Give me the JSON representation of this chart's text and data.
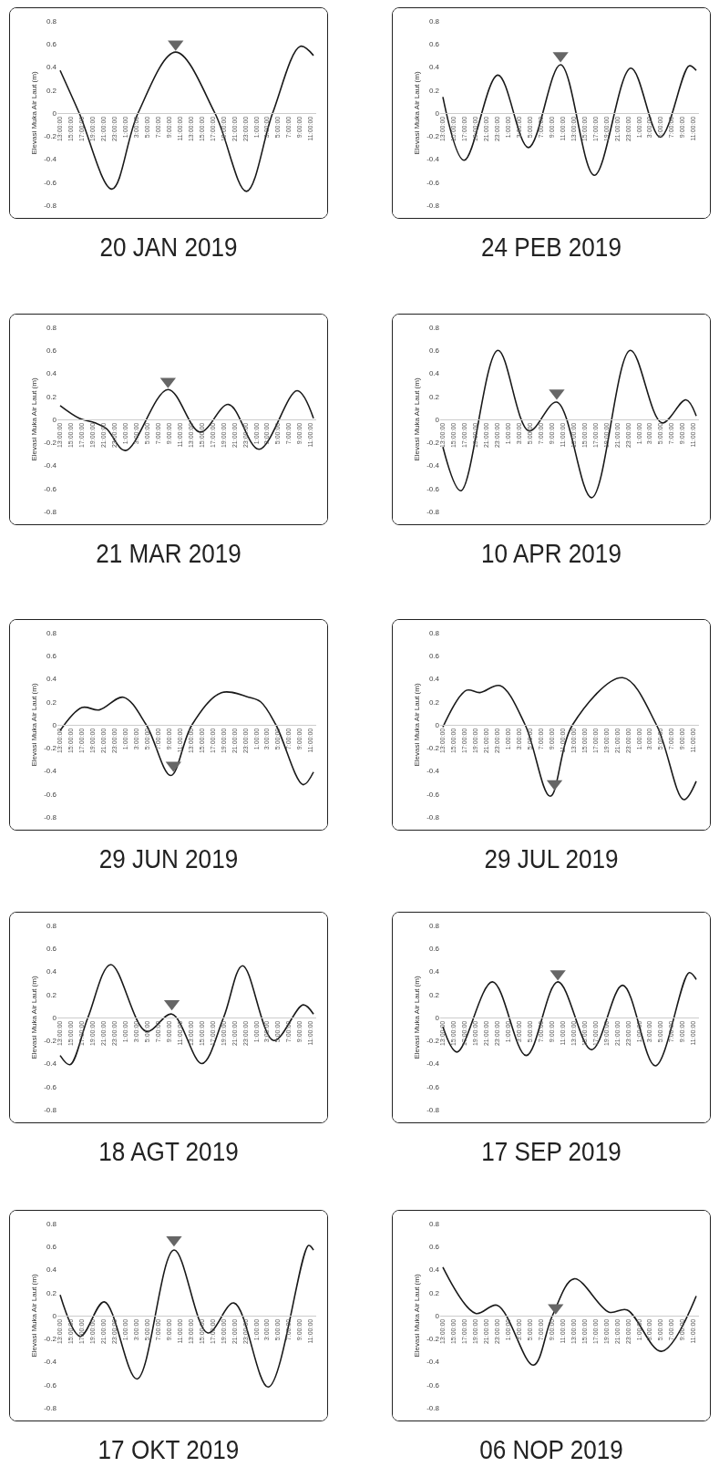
{
  "chart_data": [
    {
      "type": "line",
      "title": "20 JAN 2019",
      "ylabel": "Elevasi Muka Air Laut (m)",
      "xlim": [
        "2019-01-19T12:30",
        "2019-01-21T12:00"
      ],
      "ylim": [
        -0.8,
        0.8
      ],
      "yticks": [
        -0.8,
        -0.6,
        -0.4,
        -0.2,
        0,
        0.2,
        0.4,
        0.6,
        0.8
      ],
      "xticks": [
        {
          "value": "2019-01-19T13:00",
          "label": "13:00:00"
        },
        {
          "value": "2019-01-19T15:00",
          "label": "15:00:00"
        },
        {
          "value": "2019-01-19T17:00",
          "label": "17:00:00"
        },
        {
          "value": "2019-01-19T19:00",
          "label": "19:00:00"
        },
        {
          "value": "2019-01-19T21:00",
          "label": "21:00:00"
        },
        {
          "value": "2019-01-19T23:00",
          "label": "23:00:00"
        },
        {
          "value": "2019-01-20T01:00",
          "label": "1:00:00"
        },
        {
          "value": "2019-01-20T03:00",
          "label": "3:00:00"
        },
        {
          "value": "2019-01-20T05:00",
          "label": "5:00:00"
        },
        {
          "value": "2019-01-20T07:00",
          "label": "7:00:00"
        },
        {
          "value": "2019-01-20T09:00",
          "label": "9:00:00"
        },
        {
          "value": "2019-01-20T11:00",
          "label": "11:00:00"
        },
        {
          "value": "2019-01-20T13:00",
          "label": "13:00:00"
        },
        {
          "value": "2019-01-20T15:00",
          "label": "15:00:00"
        },
        {
          "value": "2019-01-20T17:00",
          "label": "17:00:00"
        },
        {
          "value": "2019-01-20T19:00",
          "label": "19:00:00"
        },
        {
          "value": "2019-01-20T21:00",
          "label": "21:00:00"
        },
        {
          "value": "2019-01-20T23:00",
          "label": "23:00:00"
        },
        {
          "value": "2019-01-21T01:00",
          "label": "1:00:00"
        },
        {
          "value": "2019-01-21T03:00",
          "label": "3:00:00"
        },
        {
          "value": "2019-01-21T05:00",
          "label": "5:00:00"
        },
        {
          "value": "2019-01-21T07:00",
          "label": "7:00:00"
        },
        {
          "value": "2019-01-21T09:00",
          "label": "9:00:00"
        },
        {
          "value": "2019-01-21T11:00",
          "label": "11:00:00"
        }
      ],
      "series": [
        {
          "type": "line",
          "color": "#1a1a1a",
          "x": [
            "2019-01-19T13:00",
            "2019-01-19T16:30",
            "2019-01-19T22:30",
            "2019-01-20T03:18",
            "2019-01-20T10:12",
            "2019-01-20T17:24",
            "2019-01-20T23:12",
            "2019-01-21T04:00",
            "2019-01-21T09:06",
            "2019-01-21T11:30"
          ],
          "values": [
            0.37,
            0,
            -0.66,
            0,
            0.53,
            0,
            -0.68,
            0,
            0.58,
            0.5
          ]
        },
        {
          "type": "scatter",
          "marker": "triangle",
          "color": "#666666",
          "x": [
            "2019-01-20T10:12"
          ],
          "values": [
            0.6
          ]
        }
      ]
    },
    {
      "type": "line",
      "title": "24 PEB 2019",
      "ylabel": "Elevasi Muka Air Laut (m)",
      "xlim": [
        "2019-02-23T12:30",
        "2019-02-25T12:00"
      ],
      "ylim": [
        -0.8,
        0.8
      ],
      "yticks": [
        -0.8,
        -0.6,
        -0.4,
        -0.2,
        0,
        0.2,
        0.4,
        0.6,
        0.8
      ],
      "xticks": [
        {
          "value": "2019-02-23T13:00",
          "label": "13:00:00"
        },
        {
          "value": "2019-02-23T15:00",
          "label": "15:00:00"
        },
        {
          "value": "2019-02-23T17:00",
          "label": "17:00:00"
        },
        {
          "value": "2019-02-23T19:00",
          "label": "19:00:00"
        },
        {
          "value": "2019-02-23T21:00",
          "label": "21:00:00"
        },
        {
          "value": "2019-02-23T23:00",
          "label": "23:00:00"
        },
        {
          "value": "2019-02-24T01:00",
          "label": "1:00:00"
        },
        {
          "value": "2019-02-24T03:00",
          "label": "3:00:00"
        },
        {
          "value": "2019-02-24T05:00",
          "label": "5:00:00"
        },
        {
          "value": "2019-02-24T07:00",
          "label": "7:00:00"
        },
        {
          "value": "2019-02-24T09:00",
          "label": "9:00:00"
        },
        {
          "value": "2019-02-24T11:00",
          "label": "11:00:00"
        },
        {
          "value": "2019-02-24T13:00",
          "label": "13:00:00"
        },
        {
          "value": "2019-02-24T15:00",
          "label": "15:00:00"
        },
        {
          "value": "2019-02-24T17:00",
          "label": "17:00:00"
        },
        {
          "value": "2019-02-24T19:00",
          "label": "19:00:00"
        },
        {
          "value": "2019-02-24T21:00",
          "label": "21:00:00"
        },
        {
          "value": "2019-02-24T23:00",
          "label": "23:00:00"
        },
        {
          "value": "2019-02-25T01:00",
          "label": "1:00:00"
        },
        {
          "value": "2019-02-25T03:00",
          "label": "3:00:00"
        },
        {
          "value": "2019-02-25T05:00",
          "label": "5:00:00"
        },
        {
          "value": "2019-02-25T07:00",
          "label": "7:00:00"
        },
        {
          "value": "2019-02-25T09:00",
          "label": "9:00:00"
        },
        {
          "value": "2019-02-25T11:00",
          "label": "11:00:00"
        }
      ],
      "series": [
        {
          "type": "line",
          "color": "#1a1a1a",
          "x": [
            "2019-02-23T13:00",
            "2019-02-23T16:54",
            "2019-02-23T23:06",
            "2019-02-24T04:42",
            "2019-02-24T10:36",
            "2019-02-24T16:48",
            "2019-02-24T23:30",
            "2019-02-25T04:54",
            "2019-02-25T10:12",
            "2019-02-25T11:30"
          ],
          "values": [
            0.14,
            -0.41,
            0.33,
            -0.3,
            0.42,
            -0.54,
            0.39,
            -0.21,
            0.41,
            0.37
          ]
        },
        {
          "type": "scatter",
          "marker": "triangle",
          "color": "#666666",
          "x": [
            "2019-02-24T10:36"
          ],
          "values": [
            0.5
          ]
        }
      ]
    },
    {
      "type": "line",
      "title": "21 MAR 2019",
      "ylabel": "Elevasi Muka Air Laut (m)",
      "xlim": [
        "2019-03-20T12:30",
        "2019-03-22T12:00"
      ],
      "ylim": [
        -0.8,
        0.8
      ],
      "yticks": [
        -0.8,
        -0.6,
        -0.4,
        -0.2,
        0,
        0.2,
        0.4,
        0.6,
        0.8
      ],
      "xticks": [
        {
          "value": "2019-03-20T13:00",
          "label": "13:00:00"
        },
        {
          "value": "2019-03-20T15:00",
          "label": "15:00:00"
        },
        {
          "value": "2019-03-20T17:00",
          "label": "17:00:00"
        },
        {
          "value": "2019-03-20T19:00",
          "label": "19:00:00"
        },
        {
          "value": "2019-03-20T21:00",
          "label": "21:00:00"
        },
        {
          "value": "2019-03-20T23:00",
          "label": "23:00:00"
        },
        {
          "value": "2019-03-21T01:00",
          "label": "1:00:00"
        },
        {
          "value": "2019-03-21T03:00",
          "label": "3:00:00"
        },
        {
          "value": "2019-03-21T05:00",
          "label": "5:00:00"
        },
        {
          "value": "2019-03-21T07:00",
          "label": "7:00:00"
        },
        {
          "value": "2019-03-21T09:00",
          "label": "9:00:00"
        },
        {
          "value": "2019-03-21T11:00",
          "label": "11:00:00"
        },
        {
          "value": "2019-03-21T13:00",
          "label": "13:00:00"
        },
        {
          "value": "2019-03-21T15:00",
          "label": "15:00:00"
        },
        {
          "value": "2019-03-21T17:00",
          "label": "17:00:00"
        },
        {
          "value": "2019-03-21T19:00",
          "label": "19:00:00"
        },
        {
          "value": "2019-03-21T21:00",
          "label": "21:00:00"
        },
        {
          "value": "2019-03-21T23:00",
          "label": "23:00:00"
        },
        {
          "value": "2019-03-22T01:00",
          "label": "1:00:00"
        },
        {
          "value": "2019-03-22T03:00",
          "label": "3:00:00"
        },
        {
          "value": "2019-03-22T05:00",
          "label": "5:00:00"
        },
        {
          "value": "2019-03-22T07:00",
          "label": "7:00:00"
        },
        {
          "value": "2019-03-22T09:00",
          "label": "9:00:00"
        },
        {
          "value": "2019-03-22T11:00",
          "label": "11:00:00"
        }
      ],
      "series": [
        {
          "type": "line",
          "color": "#1a1a1a",
          "x": [
            "2019-03-20T13:00",
            "2019-03-20T16:30",
            "2019-03-20T19:24",
            "2019-03-20T21:30",
            "2019-03-21T01:00",
            "2019-03-21T08:48",
            "2019-03-21T14:42",
            "2019-03-21T19:54",
            "2019-03-22T01:30",
            "2019-03-22T08:30",
            "2019-03-22T11:30"
          ],
          "values": [
            0.12,
            0.01,
            -0.03,
            -0.08,
            -0.27,
            0.26,
            -0.11,
            0.13,
            -0.26,
            0.25,
            0.01
          ]
        },
        {
          "type": "scatter",
          "marker": "triangle",
          "color": "#666666",
          "x": [
            "2019-03-21T08:48"
          ],
          "values": [
            0.33
          ]
        }
      ]
    },
    {
      "type": "line",
      "title": "10 APR 2019",
      "ylabel": "Elevasi Muka Air Laut (m)",
      "xlim": [
        "2019-04-09T12:30",
        "2019-04-11T12:00"
      ],
      "ylim": [
        -0.8,
        0.8
      ],
      "yticks": [
        -0.8,
        -0.6,
        -0.4,
        -0.2,
        0,
        0.2,
        0.4,
        0.6,
        0.8
      ],
      "xticks": [
        {
          "value": "2019-04-09T13:00",
          "label": "13:00:00"
        },
        {
          "value": "2019-04-09T15:00",
          "label": "15:00:00"
        },
        {
          "value": "2019-04-09T17:00",
          "label": "17:00:00"
        },
        {
          "value": "2019-04-09T19:00",
          "label": "19:00:00"
        },
        {
          "value": "2019-04-09T21:00",
          "label": "21:00:00"
        },
        {
          "value": "2019-04-09T23:00",
          "label": "23:00:00"
        },
        {
          "value": "2019-04-10T01:00",
          "label": "1:00:00"
        },
        {
          "value": "2019-04-10T03:00",
          "label": "3:00:00"
        },
        {
          "value": "2019-04-10T05:00",
          "label": "5:00:00"
        },
        {
          "value": "2019-04-10T07:00",
          "label": "7:00:00"
        },
        {
          "value": "2019-04-10T09:00",
          "label": "9:00:00"
        },
        {
          "value": "2019-04-10T11:00",
          "label": "11:00:00"
        },
        {
          "value": "2019-04-10T13:00",
          "label": "13:00:00"
        },
        {
          "value": "2019-04-10T15:00",
          "label": "15:00:00"
        },
        {
          "value": "2019-04-10T17:00",
          "label": "17:00:00"
        },
        {
          "value": "2019-04-10T19:00",
          "label": "19:00:00"
        },
        {
          "value": "2019-04-10T21:00",
          "label": "21:00:00"
        },
        {
          "value": "2019-04-10T23:00",
          "label": "23:00:00"
        },
        {
          "value": "2019-04-11T01:00",
          "label": "1:00:00"
        },
        {
          "value": "2019-04-11T03:00",
          "label": "3:00:00"
        },
        {
          "value": "2019-04-11T05:00",
          "label": "5:00:00"
        },
        {
          "value": "2019-04-11T07:00",
          "label": "7:00:00"
        },
        {
          "value": "2019-04-11T09:00",
          "label": "9:00:00"
        },
        {
          "value": "2019-04-11T11:00",
          "label": "11:00:00"
        }
      ],
      "series": [
        {
          "type": "line",
          "color": "#1a1a1a",
          "x": [
            "2019-04-09T13:00",
            "2019-04-09T16:18",
            "2019-04-09T23:06",
            "2019-04-10T04:48",
            "2019-04-10T09:54",
            "2019-04-10T16:18",
            "2019-04-10T23:24",
            "2019-04-11T05:12",
            "2019-04-11T09:36",
            "2019-04-11T11:30"
          ],
          "values": [
            -0.24,
            -0.62,
            0.6,
            -0.1,
            0.15,
            -0.68,
            0.6,
            -0.03,
            0.17,
            0.03
          ]
        },
        {
          "type": "scatter",
          "marker": "triangle",
          "color": "#666666",
          "x": [
            "2019-04-10T09:54"
          ],
          "values": [
            0.23
          ]
        }
      ]
    },
    {
      "type": "line",
      "title": "29 JUN 2019",
      "ylabel": "Elevasi Muka Air Laut (m)",
      "xlim": [
        "2019-06-28T12:30",
        "2019-06-30T12:00"
      ],
      "ylim": [
        -0.8,
        0.8
      ],
      "yticks": [
        -0.8,
        -0.6,
        -0.4,
        -0.2,
        0,
        0.2,
        0.4,
        0.6,
        0.8
      ],
      "xticks": [
        {
          "value": "2019-06-28T13:00",
          "label": "13:00:00"
        },
        {
          "value": "2019-06-28T15:00",
          "label": "15:00:00"
        },
        {
          "value": "2019-06-28T17:00",
          "label": "17:00:00"
        },
        {
          "value": "2019-06-28T19:00",
          "label": "19:00:00"
        },
        {
          "value": "2019-06-28T21:00",
          "label": "21:00:00"
        },
        {
          "value": "2019-06-28T23:00",
          "label": "23:00:00"
        },
        {
          "value": "2019-06-29T01:00",
          "label": "1:00:00"
        },
        {
          "value": "2019-06-29T03:00",
          "label": "3:00:00"
        },
        {
          "value": "2019-06-29T05:00",
          "label": "5:00:00"
        },
        {
          "value": "2019-06-29T07:00",
          "label": "7:00:00"
        },
        {
          "value": "2019-06-29T09:00",
          "label": "9:00:00"
        },
        {
          "value": "2019-06-29T11:00",
          "label": "11:00:00"
        },
        {
          "value": "2019-06-29T13:00",
          "label": "13:00:00"
        },
        {
          "value": "2019-06-29T15:00",
          "label": "15:00:00"
        },
        {
          "value": "2019-06-29T17:00",
          "label": "17:00:00"
        },
        {
          "value": "2019-06-29T19:00",
          "label": "19:00:00"
        },
        {
          "value": "2019-06-29T21:00",
          "label": "21:00:00"
        },
        {
          "value": "2019-06-29T23:00",
          "label": "23:00:00"
        },
        {
          "value": "2019-06-30T01:00",
          "label": "1:00:00"
        },
        {
          "value": "2019-06-30T03:00",
          "label": "3:00:00"
        },
        {
          "value": "2019-06-30T05:00",
          "label": "5:00:00"
        },
        {
          "value": "2019-06-30T07:00",
          "label": "7:00:00"
        },
        {
          "value": "2019-06-30T09:00",
          "label": "9:00:00"
        },
        {
          "value": "2019-06-30T11:00",
          "label": "11:00:00"
        }
      ],
      "series": [
        {
          "type": "line",
          "color": "#1a1a1a",
          "x": [
            "2019-06-28T13:00",
            "2019-06-28T17:00",
            "2019-06-28T20:12",
            "2019-06-29T00:36",
            "2019-06-29T04:48",
            "2019-06-29T09:18",
            "2019-06-29T13:12",
            "2019-06-29T18:36",
            "2019-06-29T23:36",
            "2019-06-30T01:48",
            "2019-06-30T04:36",
            "2019-06-30T09:36",
            "2019-06-30T11:30"
          ],
          "values": [
            -0.05,
            0.15,
            0.13,
            0.24,
            0,
            -0.44,
            0,
            0.28,
            0.24,
            0.2,
            0,
            -0.52,
            -0.41
          ]
        },
        {
          "type": "scatter",
          "marker": "triangle",
          "color": "#666666",
          "x": [
            "2019-06-29T09:48"
          ],
          "values": [
            -0.35
          ]
        }
      ]
    },
    {
      "type": "line",
      "title": "29 JUL 2019",
      "ylabel": "Elevasi Muka Air Laut (m)",
      "xlim": [
        "2019-07-28T12:30",
        "2019-07-30T12:00"
      ],
      "ylim": [
        -0.8,
        0.8
      ],
      "yticks": [
        -0.8,
        -0.6,
        -0.4,
        -0.2,
        0,
        0.2,
        0.4,
        0.6,
        0.8
      ],
      "xticks": [
        {
          "value": "2019-07-28T13:00",
          "label": "13:00:00"
        },
        {
          "value": "2019-07-28T15:00",
          "label": "15:00:00"
        },
        {
          "value": "2019-07-28T17:00",
          "label": "17:00:00"
        },
        {
          "value": "2019-07-28T19:00",
          "label": "19:00:00"
        },
        {
          "value": "2019-07-28T21:00",
          "label": "21:00:00"
        },
        {
          "value": "2019-07-28T23:00",
          "label": "23:00:00"
        },
        {
          "value": "2019-07-29T01:00",
          "label": "1:00:00"
        },
        {
          "value": "2019-07-29T03:00",
          "label": "3:00:00"
        },
        {
          "value": "2019-07-29T05:00",
          "label": "5:00:00"
        },
        {
          "value": "2019-07-29T07:00",
          "label": "7:00:00"
        },
        {
          "value": "2019-07-29T09:00",
          "label": "9:00:00"
        },
        {
          "value": "2019-07-29T11:00",
          "label": "11:00:00"
        },
        {
          "value": "2019-07-29T13:00",
          "label": "13:00:00"
        },
        {
          "value": "2019-07-29T15:00",
          "label": "15:00:00"
        },
        {
          "value": "2019-07-29T17:00",
          "label": "17:00:00"
        },
        {
          "value": "2019-07-29T19:00",
          "label": "19:00:00"
        },
        {
          "value": "2019-07-29T21:00",
          "label": "21:00:00"
        },
        {
          "value": "2019-07-29T23:00",
          "label": "23:00:00"
        },
        {
          "value": "2019-07-30T01:00",
          "label": "1:00:00"
        },
        {
          "value": "2019-07-30T03:00",
          "label": "3:00:00"
        },
        {
          "value": "2019-07-30T05:00",
          "label": "5:00:00"
        },
        {
          "value": "2019-07-30T07:00",
          "label": "7:00:00"
        },
        {
          "value": "2019-07-30T09:00",
          "label": "9:00:00"
        },
        {
          "value": "2019-07-30T11:00",
          "label": "11:00:00"
        }
      ],
      "series": [
        {
          "type": "line",
          "color": "#1a1a1a",
          "x": [
            "2019-07-28T13:00",
            "2019-07-28T17:18",
            "2019-07-28T19:48",
            "2019-07-28T23:30",
            "2019-07-29T04:06",
            "2019-07-29T08:42",
            "2019-07-29T12:48",
            "2019-07-29T22:00",
            "2019-07-30T04:12",
            "2019-07-30T09:12",
            "2019-07-30T11:30"
          ],
          "values": [
            -0.02,
            0.3,
            0.28,
            0.34,
            0,
            -0.62,
            0,
            0.41,
            0,
            -0.65,
            -0.49
          ]
        },
        {
          "type": "scatter",
          "marker": "triangle",
          "color": "#666666",
          "x": [
            "2019-07-29T09:30"
          ],
          "values": [
            -0.51
          ]
        }
      ]
    },
    {
      "type": "line",
      "title": "18 AGT 2019",
      "ylabel": "Elevasi Muka Air Laut (m)",
      "xlim": [
        "2019-08-17T12:30",
        "2019-08-19T12:00"
      ],
      "ylim": [
        -0.8,
        0.8
      ],
      "yticks": [
        -0.8,
        -0.6,
        -0.4,
        -0.2,
        0,
        0.2,
        0.4,
        0.6,
        0.8
      ],
      "xticks": [
        {
          "value": "2019-08-17T13:00",
          "label": "13:00:00"
        },
        {
          "value": "2019-08-17T15:00",
          "label": "15:00:00"
        },
        {
          "value": "2019-08-17T17:00",
          "label": "17:00:00"
        },
        {
          "value": "2019-08-17T19:00",
          "label": "19:00:00"
        },
        {
          "value": "2019-08-17T21:00",
          "label": "21:00:00"
        },
        {
          "value": "2019-08-17T23:00",
          "label": "23:00:00"
        },
        {
          "value": "2019-08-18T01:00",
          "label": "1:00:00"
        },
        {
          "value": "2019-08-18T03:00",
          "label": "3:00:00"
        },
        {
          "value": "2019-08-18T05:00",
          "label": "5:00:00"
        },
        {
          "value": "2019-08-18T07:00",
          "label": "7:00:00"
        },
        {
          "value": "2019-08-18T09:00",
          "label": "9:00:00"
        },
        {
          "value": "2019-08-18T11:00",
          "label": "11:00:00"
        },
        {
          "value": "2019-08-18T13:00",
          "label": "13:00:00"
        },
        {
          "value": "2019-08-18T15:00",
          "label": "15:00:00"
        },
        {
          "value": "2019-08-18T17:00",
          "label": "17:00:00"
        },
        {
          "value": "2019-08-18T19:00",
          "label": "19:00:00"
        },
        {
          "value": "2019-08-18T21:00",
          "label": "21:00:00"
        },
        {
          "value": "2019-08-18T23:00",
          "label": "23:00:00"
        },
        {
          "value": "2019-08-19T01:00",
          "label": "1:00:00"
        },
        {
          "value": "2019-08-19T03:00",
          "label": "3:00:00"
        },
        {
          "value": "2019-08-19T05:00",
          "label": "5:00:00"
        },
        {
          "value": "2019-08-19T07:00",
          "label": "7:00:00"
        },
        {
          "value": "2019-08-19T09:00",
          "label": "9:00:00"
        },
        {
          "value": "2019-08-19T11:00",
          "label": "11:00:00"
        }
      ],
      "series": [
        {
          "type": "line",
          "color": "#1a1a1a",
          "x": [
            "2019-08-17T13:00",
            "2019-08-17T14:48",
            "2019-08-17T18:06",
            "2019-08-17T22:18",
            "2019-08-18T04:48",
            "2019-08-18T09:30",
            "2019-08-18T15:00",
            "2019-08-18T19:00",
            "2019-08-18T22:30",
            "2019-08-19T04:12",
            "2019-08-19T09:36",
            "2019-08-19T11:30"
          ],
          "values": [
            -0.33,
            -0.41,
            0,
            0.46,
            -0.12,
            0.03,
            -0.4,
            0,
            0.45,
            -0.2,
            0.11,
            0.03
          ]
        },
        {
          "type": "scatter",
          "marker": "triangle",
          "color": "#666666",
          "x": [
            "2019-08-18T09:30"
          ],
          "values": [
            0.12
          ]
        }
      ]
    },
    {
      "type": "line",
      "title": "17 SEP 2019",
      "ylabel": "Elevasi Muka Air Laut (m)",
      "xlim": [
        "2019-09-16T12:30",
        "2019-09-18T12:00"
      ],
      "ylim": [
        -0.8,
        0.8
      ],
      "yticks": [
        -0.8,
        -0.6,
        -0.4,
        -0.2,
        0,
        0.2,
        0.4,
        0.6,
        0.8
      ],
      "xticks": [
        {
          "value": "2019-09-16T13:00",
          "label": "13:00:00"
        },
        {
          "value": "2019-09-16T15:00",
          "label": "15:00:00"
        },
        {
          "value": "2019-09-16T17:00",
          "label": "17:00:00"
        },
        {
          "value": "2019-09-16T19:00",
          "label": "19:00:00"
        },
        {
          "value": "2019-09-16T21:00",
          "label": "21:00:00"
        },
        {
          "value": "2019-09-16T23:00",
          "label": "23:00:00"
        },
        {
          "value": "2019-09-17T01:00",
          "label": "1:00:00"
        },
        {
          "value": "2019-09-17T03:00",
          "label": "3:00:00"
        },
        {
          "value": "2019-09-17T05:00",
          "label": "5:00:00"
        },
        {
          "value": "2019-09-17T07:00",
          "label": "7:00:00"
        },
        {
          "value": "2019-09-17T09:00",
          "label": "9:00:00"
        },
        {
          "value": "2019-09-17T11:00",
          "label": "11:00:00"
        },
        {
          "value": "2019-09-17T13:00",
          "label": "13:00:00"
        },
        {
          "value": "2019-09-17T15:00",
          "label": "15:00:00"
        },
        {
          "value": "2019-09-17T17:00",
          "label": "17:00:00"
        },
        {
          "value": "2019-09-17T19:00",
          "label": "19:00:00"
        },
        {
          "value": "2019-09-17T21:00",
          "label": "21:00:00"
        },
        {
          "value": "2019-09-17T23:00",
          "label": "23:00:00"
        },
        {
          "value": "2019-09-18T01:00",
          "label": "1:00:00"
        },
        {
          "value": "2019-09-18T03:00",
          "label": "3:00:00"
        },
        {
          "value": "2019-09-18T05:00",
          "label": "5:00:00"
        },
        {
          "value": "2019-09-18T07:00",
          "label": "7:00:00"
        },
        {
          "value": "2019-09-18T09:00",
          "label": "9:00:00"
        },
        {
          "value": "2019-09-18T11:00",
          "label": "11:00:00"
        }
      ],
      "series": [
        {
          "type": "line",
          "color": "#1a1a1a",
          "x": [
            "2019-09-16T13:00",
            "2019-09-16T15:36",
            "2019-09-16T22:06",
            "2019-09-17T04:18",
            "2019-09-17T10:06",
            "2019-09-17T16:18",
            "2019-09-17T22:00",
            "2019-09-18T04:00",
            "2019-09-18T10:12",
            "2019-09-18T11:30"
          ],
          "values": [
            -0.08,
            -0.3,
            0.31,
            -0.33,
            0.31,
            -0.28,
            0.28,
            -0.42,
            0.39,
            0.33
          ]
        },
        {
          "type": "scatter",
          "marker": "triangle",
          "color": "#666666",
          "x": [
            "2019-09-17T10:06"
          ],
          "values": [
            0.38
          ]
        }
      ]
    },
    {
      "type": "line",
      "title": "17 OKT 2019",
      "ylabel": "Elevasi Muka Air Laut (m)",
      "xlim": [
        "2019-10-16T12:30",
        "2019-10-18T12:00"
      ],
      "ylim": [
        -0.8,
        0.8
      ],
      "yticks": [
        -0.8,
        -0.6,
        -0.4,
        -0.2,
        0,
        0.2,
        0.4,
        0.6,
        0.8
      ],
      "xticks": [
        {
          "value": "2019-10-16T13:00",
          "label": "13:00:00"
        },
        {
          "value": "2019-10-16T15:00",
          "label": "15:00:00"
        },
        {
          "value": "2019-10-16T17:00",
          "label": "17:00:00"
        },
        {
          "value": "2019-10-16T19:00",
          "label": "19:00:00"
        },
        {
          "value": "2019-10-16T21:00",
          "label": "21:00:00"
        },
        {
          "value": "2019-10-16T23:00",
          "label": "23:00:00"
        },
        {
          "value": "2019-10-17T01:00",
          "label": "1:00:00"
        },
        {
          "value": "2019-10-17T03:00",
          "label": "3:00:00"
        },
        {
          "value": "2019-10-17T05:00",
          "label": "5:00:00"
        },
        {
          "value": "2019-10-17T07:00",
          "label": "7:00:00"
        },
        {
          "value": "2019-10-17T09:00",
          "label": "9:00:00"
        },
        {
          "value": "2019-10-17T11:00",
          "label": "11:00:00"
        },
        {
          "value": "2019-10-17T13:00",
          "label": "13:00:00"
        },
        {
          "value": "2019-10-17T15:00",
          "label": "15:00:00"
        },
        {
          "value": "2019-10-17T17:00",
          "label": "17:00:00"
        },
        {
          "value": "2019-10-17T19:00",
          "label": "19:00:00"
        },
        {
          "value": "2019-10-17T21:00",
          "label": "21:00:00"
        },
        {
          "value": "2019-10-17T23:00",
          "label": "23:00:00"
        },
        {
          "value": "2019-10-18T01:00",
          "label": "1:00:00"
        },
        {
          "value": "2019-10-18T03:00",
          "label": "3:00:00"
        },
        {
          "value": "2019-10-18T05:00",
          "label": "5:00:00"
        },
        {
          "value": "2019-10-18T07:00",
          "label": "7:00:00"
        },
        {
          "value": "2019-10-18T09:00",
          "label": "9:00:00"
        },
        {
          "value": "2019-10-18T11:00",
          "label": "11:00:00"
        }
      ],
      "series": [
        {
          "type": "line",
          "color": "#1a1a1a",
          "x": [
            "2019-10-16T13:00",
            "2019-10-16T16:42",
            "2019-10-16T21:06",
            "2019-10-17T03:06",
            "2019-10-17T09:54",
            "2019-10-17T16:06",
            "2019-10-17T20:54",
            "2019-10-18T03:12",
            "2019-10-18T10:36",
            "2019-10-18T11:30"
          ],
          "values": [
            0.18,
            -0.18,
            0.12,
            -0.55,
            0.57,
            -0.15,
            0.11,
            -0.62,
            0.61,
            0.57
          ]
        },
        {
          "type": "scatter",
          "marker": "triangle",
          "color": "#666666",
          "x": [
            "2019-10-17T09:54"
          ],
          "values": [
            0.66
          ]
        }
      ]
    },
    {
      "type": "line",
      "title": "06 NOP 2019",
      "ylabel": "Elevasi Muka Air Laut (m)",
      "xlim": [
        "2019-11-05T12:30",
        "2019-11-07T12:00"
      ],
      "ylim": [
        -0.8,
        0.8
      ],
      "yticks": [
        -0.8,
        -0.6,
        -0.4,
        -0.2,
        0,
        0.2,
        0.4,
        0.6,
        0.8
      ],
      "xticks": [
        {
          "value": "2019-11-05T13:00",
          "label": "13:00:00"
        },
        {
          "value": "2019-11-05T15:00",
          "label": "15:00:00"
        },
        {
          "value": "2019-11-05T17:00",
          "label": "17:00:00"
        },
        {
          "value": "2019-11-05T19:00",
          "label": "19:00:00"
        },
        {
          "value": "2019-11-05T21:00",
          "label": "21:00:00"
        },
        {
          "value": "2019-11-05T23:00",
          "label": "23:00:00"
        },
        {
          "value": "2019-11-06T01:00",
          "label": "1:00:00"
        },
        {
          "value": "2019-11-06T03:00",
          "label": "3:00:00"
        },
        {
          "value": "2019-11-06T05:00",
          "label": "5:00:00"
        },
        {
          "value": "2019-11-06T07:00",
          "label": "7:00:00"
        },
        {
          "value": "2019-11-06T09:00",
          "label": "9:00:00"
        },
        {
          "value": "2019-11-06T11:00",
          "label": "11:00:00"
        },
        {
          "value": "2019-11-06T13:00",
          "label": "13:00:00"
        },
        {
          "value": "2019-11-06T15:00",
          "label": "15:00:00"
        },
        {
          "value": "2019-11-06T17:00",
          "label": "17:00:00"
        },
        {
          "value": "2019-11-06T19:00",
          "label": "19:00:00"
        },
        {
          "value": "2019-11-06T21:00",
          "label": "21:00:00"
        },
        {
          "value": "2019-11-06T23:00",
          "label": "23:00:00"
        },
        {
          "value": "2019-11-07T01:00",
          "label": "1:00:00"
        },
        {
          "value": "2019-11-07T03:00",
          "label": "3:00:00"
        },
        {
          "value": "2019-11-07T05:00",
          "label": "5:00:00"
        },
        {
          "value": "2019-11-07T07:00",
          "label": "7:00:00"
        },
        {
          "value": "2019-11-07T09:00",
          "label": "9:00:00"
        },
        {
          "value": "2019-11-07T11:00",
          "label": "11:00:00"
        }
      ],
      "series": [
        {
          "type": "line",
          "color": "#1a1a1a",
          "x": [
            "2019-11-05T13:00",
            "2019-11-05T19:00",
            "2019-11-05T23:00",
            "2019-11-06T05:36",
            "2019-11-06T09:06",
            "2019-11-06T13:06",
            "2019-11-06T19:30",
            "2019-11-06T22:48",
            "2019-11-07T05:06",
            "2019-11-07T11:30"
          ],
          "values": [
            0.42,
            0.02,
            0.09,
            -0.43,
            0,
            0.32,
            0.03,
            0.05,
            -0.31,
            0.17
          ]
        },
        {
          "type": "scatter",
          "marker": "triangle",
          "color": "#666666",
          "x": [
            "2019-11-06T09:42"
          ],
          "values": [
            0.07
          ]
        }
      ]
    }
  ]
}
